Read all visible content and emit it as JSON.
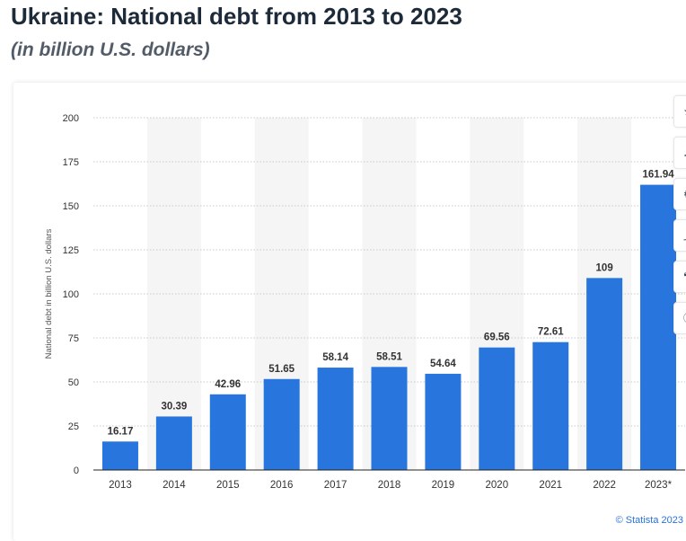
{
  "title": "Ukraine: National debt from 2013 to 2023",
  "subtitle": "(in billion U.S. dollars)",
  "credit": "© Statista 2023",
  "colors": {
    "bar": "#2876dd",
    "band": "#f5f5f5",
    "grid": "#c9c9c9",
    "axis": "#222222"
  },
  "toolbar": [
    {
      "icon": "star-icon"
    },
    {
      "icon": "bell-icon"
    },
    {
      "icon": "settings-icon"
    },
    {
      "icon": "share-icon"
    },
    {
      "icon": "quote-icon"
    },
    {
      "icon": "info-icon"
    }
  ],
  "chart_data": {
    "type": "bar",
    "title": "Ukraine: National debt from 2013 to 2023",
    "subtitle": "(in billion U.S. dollars)",
    "xlabel": "",
    "ylabel": "National debt in billion U.S. dollars",
    "categories": [
      "2013",
      "2014",
      "2015",
      "2016",
      "2017",
      "2018",
      "2019",
      "2020",
      "2021",
      "2022",
      "2023*"
    ],
    "values": [
      16.17,
      30.39,
      42.96,
      51.65,
      58.14,
      58.51,
      54.64,
      69.56,
      72.61,
      109,
      161.94
    ],
    "value_labels": [
      "16.17",
      "30.39",
      "42.96",
      "51.65",
      "58.14",
      "58.51",
      "54.64",
      "69.56",
      "72.61",
      "109",
      "161.94"
    ],
    "ylim": [
      0,
      200
    ],
    "yticks": [
      0,
      25,
      50,
      75,
      100,
      125,
      150,
      175,
      200
    ],
    "grid": true,
    "legend": "none"
  }
}
